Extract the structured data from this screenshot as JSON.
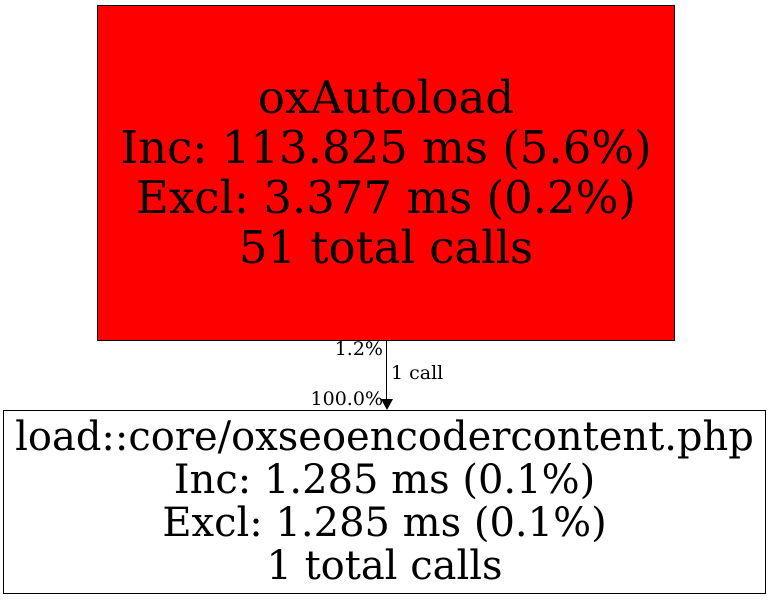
{
  "graph": {
    "nodes": [
      {
        "id": "oxAutoload",
        "lines": [
          "oxAutoload",
          "Inc: 113.825 ms (5.6%)",
          "Excl: 3.377 ms (0.2%)",
          "51 total calls"
        ],
        "fill": "#ff0000",
        "border_color": "#000000",
        "text_color": "#000000"
      },
      {
        "id": "load::core/oxseoencodercontent.php",
        "lines": [
          "load::core/oxseoencodercontent.php",
          "Inc: 1.285 ms (0.1%)",
          "Excl: 1.285 ms (0.1%)",
          "1 total calls"
        ],
        "fill": "#ffffff",
        "border_color": "#000000",
        "text_color": "#000000"
      }
    ],
    "edges": [
      {
        "from": "oxAutoload",
        "to": "load::core/oxseoencodercontent.php",
        "labels": {
          "cost_pct": "1.2%",
          "calls": "1 call",
          "share_pct": "100.0%"
        },
        "color": "#000000"
      }
    ]
  }
}
